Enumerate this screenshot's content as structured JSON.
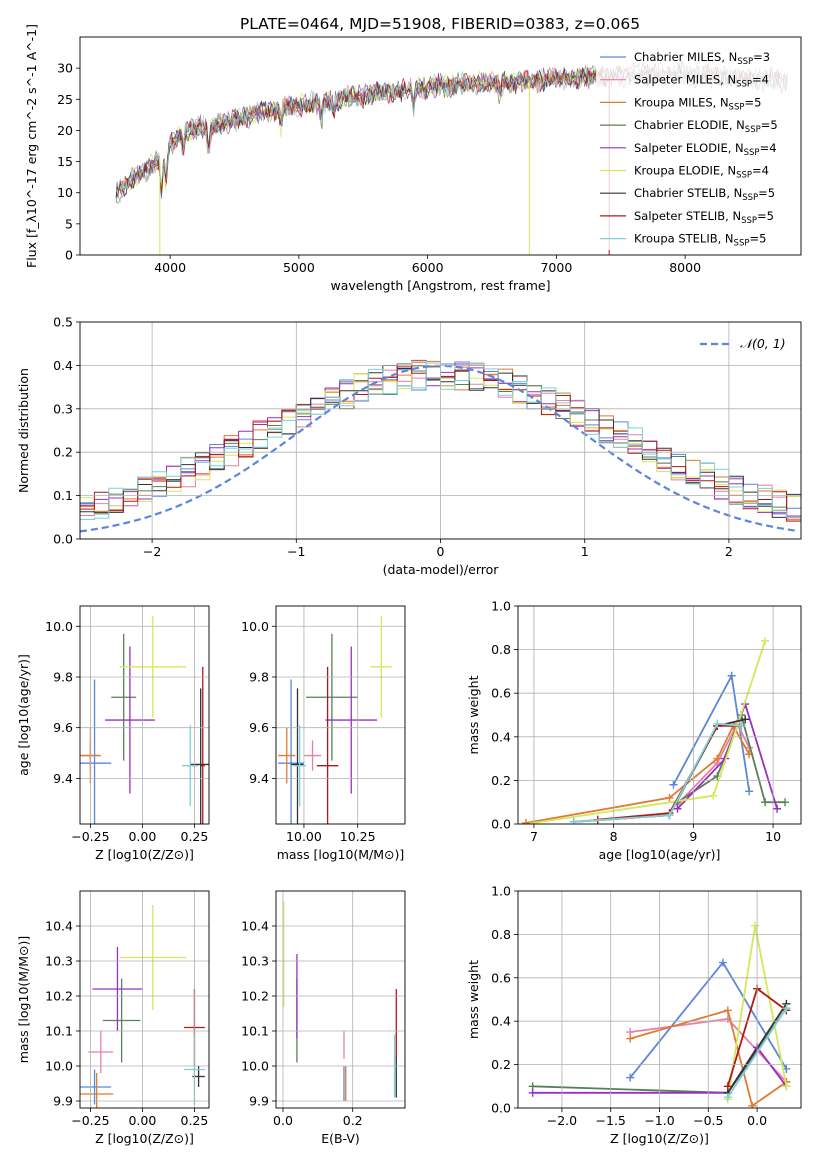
{
  "title": "PLATE=0464, MJD=51908, FIBERID=0383, z=0.065",
  "colors": {
    "chabrier_miles": "#5b86d9",
    "salpeter_miles": "#e87fa8",
    "kroupa_miles": "#e07a30",
    "chabrier_elodie": "#5a7f5a",
    "salpeter_elodie": "#9b30c0",
    "kroupa_elodie": "#d4e85a",
    "chabrier_stelib": "#333333",
    "salpeter_stelib": "#b01818",
    "kroupa_stelib": "#7fd0d8",
    "gauss": "#5b86d9",
    "grid": "#b0b0b0"
  },
  "chart_data": [
    {
      "id": "spectrum",
      "type": "line",
      "xlabel": "wavelength [Angstrom, rest frame]",
      "ylabel": "Flux [f_λ10^-17 erg cm^-2 s^-1 A^-1]",
      "xlim": [
        3300,
        8900
      ],
      "ylim": [
        0,
        35
      ],
      "xticks": [
        4000,
        5000,
        6000,
        7000,
        8000
      ],
      "yticks": [
        0,
        5,
        10,
        15,
        20,
        25,
        30
      ],
      "grid": false,
      "legend": "top-right",
      "legend_entries": [
        "Chabrier MILES, N_SSP=3",
        "Salpeter MILES, N_SSP=4",
        "Kroupa MILES, N_SSP=5",
        "Chabrier ELODIE, N_SSP=5",
        "Salpeter ELODIE, N_SSP=4",
        "Kroupa ELODIE, N_SSP=4",
        "Chabrier STELIB, N_SSP=5",
        "Salpeter STELIB, N_SSP=5",
        "Kroupa STELIB, N_SSP=5"
      ],
      "continuum": {
        "x": [
          3580,
          3700,
          3900,
          4100,
          4400,
          4700,
          5000,
          5300,
          5600,
          6000,
          6400,
          6800,
          7200,
          7600,
          8000,
          8400,
          8800
        ],
        "y": [
          10,
          12,
          15,
          20,
          21,
          23,
          24,
          25,
          26,
          27,
          27.5,
          28,
          28.5,
          29,
          29,
          28.5,
          28
        ]
      }
    },
    {
      "id": "residuals",
      "type": "line",
      "xlabel": "(data-model)/error",
      "ylabel": "Normed distribution",
      "xlim": [
        -2.5,
        2.5
      ],
      "ylim": [
        0,
        0.5
      ],
      "xticks": [
        -2,
        -1,
        0,
        1,
        2
      ],
      "yticks": [
        0.0,
        0.1,
        0.2,
        0.3,
        0.4,
        0.5
      ],
      "grid": true,
      "legend": "top-right",
      "gauss_label": "𝒩(0, 1)"
    },
    {
      "id": "age_vs_Z",
      "type": "scatter",
      "xlabel": "Z [log10(Z/Z⊙)]",
      "ylabel": "age  [log10(age/yr)]",
      "xlim": [
        -0.3,
        0.32
      ],
      "ylim": [
        9.22,
        10.08
      ],
      "xticks": [
        -0.25,
        0.0,
        0.25
      ],
      "yticks": [
        9.4,
        9.6,
        9.8,
        10.0
      ],
      "points": [
        {
          "s": "chabrier_miles",
          "x": -0.23,
          "xerr": 0.08,
          "y": 9.46,
          "yerr": 0.33
        },
        {
          "s": "salpeter_miles",
          "x": -0.25,
          "xerr": 0.04,
          "y": 9.49,
          "yerr": 0.06
        },
        {
          "s": "kroupa_miles",
          "x": -0.25,
          "xerr": 0.05,
          "y": 9.49,
          "yerr": 0.11
        },
        {
          "s": "chabrier_elodie",
          "x": -0.09,
          "xerr": 0.06,
          "y": 9.72,
          "yerr": 0.25
        },
        {
          "s": "salpeter_elodie",
          "x": -0.06,
          "xerr": 0.12,
          "y": 9.63,
          "yerr": 0.29
        },
        {
          "s": "kroupa_elodie",
          "x": 0.05,
          "xerr": 0.16,
          "y": 9.84,
          "yerr": 0.2
        },
        {
          "s": "chabrier_stelib",
          "x": 0.28,
          "xerr": 0.05,
          "y": 9.455,
          "yerr": 0.3
        },
        {
          "s": "salpeter_stelib",
          "x": 0.29,
          "xerr": 0.01,
          "y": 9.45,
          "yerr": 0.39
        },
        {
          "s": "kroupa_stelib",
          "x": 0.23,
          "xerr": 0.04,
          "y": 9.45,
          "yerr": 0.16
        }
      ]
    },
    {
      "id": "age_vs_mass",
      "type": "scatter",
      "xlabel": "mass [log10(M/M⊙)]",
      "ylabel": "",
      "xlim": [
        9.87,
        10.47
      ],
      "ylim": [
        9.22,
        10.08
      ],
      "xticks": [
        10.0,
        10.25
      ],
      "yticks": [
        9.4,
        9.6,
        9.8,
        10.0
      ],
      "points": [
        {
          "s": "chabrier_miles",
          "x": 9.94,
          "xerr": 0.06,
          "y": 9.46,
          "yerr": 0.33
        },
        {
          "s": "salpeter_miles",
          "x": 10.04,
          "xerr": 0.04,
          "y": 9.49,
          "yerr": 0.06
        },
        {
          "s": "kroupa_miles",
          "x": 9.92,
          "xerr": 0.04,
          "y": 9.49,
          "yerr": 0.11
        },
        {
          "s": "chabrier_elodie",
          "x": 10.13,
          "xerr": 0.12,
          "y": 9.72,
          "yerr": 0.25
        },
        {
          "s": "salpeter_elodie",
          "x": 10.22,
          "xerr": 0.12,
          "y": 9.63,
          "yerr": 0.29
        },
        {
          "s": "kroupa_elodie",
          "x": 10.36,
          "xerr": 0.05,
          "y": 9.84,
          "yerr": 0.2
        },
        {
          "s": "chabrier_stelib",
          "x": 9.97,
          "xerr": 0.03,
          "y": 9.455,
          "yerr": 0.3
        },
        {
          "s": "salpeter_stelib",
          "x": 10.11,
          "xerr": 0.05,
          "y": 9.45,
          "yerr": 0.39
        },
        {
          "s": "kroupa_stelib",
          "x": 9.98,
          "xerr": 0.03,
          "y": 9.45,
          "yerr": 0.16
        }
      ]
    },
    {
      "id": "weight_vs_age",
      "type": "line",
      "xlabel": "age  [log10(age/yr)]",
      "ylabel": "mass weight",
      "xlim": [
        6.8,
        10.35
      ],
      "ylim": [
        0,
        1
      ],
      "xticks": [
        7,
        8,
        9,
        10
      ],
      "yticks": [
        0.0,
        0.2,
        0.4,
        0.6,
        0.8,
        1.0
      ],
      "series": [
        {
          "s": "chabrier_miles",
          "x": [
            8.75,
            9.48,
            9.7
          ],
          "y": [
            0.18,
            0.68,
            0.15
          ]
        },
        {
          "s": "salpeter_miles",
          "x": [
            8.8,
            9.3,
            9.55,
            9.7
          ],
          "y": [
            0.09,
            0.28,
            0.46,
            0.35
          ]
        },
        {
          "s": "kroupa_miles",
          "x": [
            6.9,
            8.7,
            9.3,
            9.5,
            9.7
          ],
          "y": [
            0.005,
            0.12,
            0.3,
            0.45,
            0.32
          ]
        },
        {
          "s": "chabrier_elodie",
          "x": [
            8.8,
            9.3,
            9.6,
            9.9,
            10.15
          ],
          "y": [
            0.1,
            0.22,
            0.5,
            0.1,
            0.1
          ]
        },
        {
          "s": "salpeter_elodie",
          "x": [
            8.8,
            9.4,
            9.65,
            10.05
          ],
          "y": [
            0.07,
            0.3,
            0.55,
            0.07
          ]
        },
        {
          "s": "kroupa_elodie",
          "x": [
            7.0,
            9.25,
            9.55,
            9.9
          ],
          "y": [
            0.005,
            0.13,
            0.45,
            0.84
          ]
        },
        {
          "s": "chabrier_stelib",
          "x": [
            7.5,
            8.7,
            9.3,
            9.65
          ],
          "y": [
            0.01,
            0.04,
            0.45,
            0.48
          ]
        },
        {
          "s": "salpeter_stelib",
          "x": [
            7.8,
            8.7,
            9.3,
            9.6
          ],
          "y": [
            0.02,
            0.05,
            0.45,
            0.45
          ]
        },
        {
          "s": "kroupa_stelib",
          "x": [
            7.5,
            8.7,
            9.3,
            9.6
          ],
          "y": [
            0.01,
            0.04,
            0.46,
            0.45
          ]
        }
      ]
    },
    {
      "id": "mass_vs_Z",
      "type": "scatter",
      "xlabel": "Z [log10(Z/Z⊙)]",
      "ylabel": "mass [log10(M/M⊙)]",
      "xlim": [
        -0.3,
        0.32
      ],
      "ylim": [
        9.88,
        10.5
      ],
      "xticks": [
        -0.25,
        0.0,
        0.25
      ],
      "yticks": [
        9.9,
        10.0,
        10.1,
        10.2,
        10.3,
        10.4
      ],
      "points": [
        {
          "s": "chabrier_miles",
          "x": -0.23,
          "xerr": 0.08,
          "y": 9.94,
          "yerr": 0.05
        },
        {
          "s": "salpeter_miles",
          "x": -0.2,
          "xerr": 0.06,
          "y": 10.04,
          "yerr": 0.06
        },
        {
          "s": "kroupa_miles",
          "x": -0.22,
          "xerr": 0.08,
          "y": 9.92,
          "yerr": 0.06
        },
        {
          "s": "chabrier_elodie",
          "x": -0.1,
          "xerr": 0.09,
          "y": 10.13,
          "yerr": 0.12
        },
        {
          "s": "salpeter_elodie",
          "x": -0.12,
          "xerr": 0.12,
          "y": 10.22,
          "yerr": 0.12
        },
        {
          "s": "kroupa_elodie",
          "x": 0.05,
          "xerr": 0.16,
          "y": 10.31,
          "yerr": 0.15
        },
        {
          "s": "chabrier_stelib",
          "x": 0.27,
          "xerr": 0.03,
          "y": 9.97,
          "yerr": 0.03
        },
        {
          "s": "salpeter_stelib",
          "x": 0.25,
          "xerr": 0.05,
          "y": 10.11,
          "yerr": 0.11
        },
        {
          "s": "kroupa_stelib",
          "x": 0.25,
          "xerr": 0.05,
          "y": 9.99,
          "yerr": 0.1
        }
      ]
    },
    {
      "id": "mass_vs_EBV",
      "type": "scatter",
      "xlabel": "E(B-V)",
      "ylabel": "",
      "xlim": [
        -0.02,
        0.35
      ],
      "ylim": [
        9.88,
        10.5
      ],
      "xticks": [
        0.0,
        0.2
      ],
      "yticks": [
        9.9,
        10.0,
        10.1,
        10.2,
        10.3,
        10.4
      ],
      "points": [
        {
          "s": "chabrier_miles",
          "x": 0.175,
          "xerr": 0,
          "y": 9.95,
          "yerr": 0.05
        },
        {
          "s": "salpeter_miles",
          "x": 0.175,
          "xerr": 0,
          "y": 10.06,
          "yerr": 0.04
        },
        {
          "s": "kroupa_miles",
          "x": 0.18,
          "xerr": 0,
          "y": 9.95,
          "yerr": 0.05
        },
        {
          "s": "chabrier_elodie",
          "x": 0.04,
          "xerr": 0,
          "y": 10.13,
          "yerr": 0.12
        },
        {
          "s": "salpeter_elodie",
          "x": 0.04,
          "xerr": 0,
          "y": 10.2,
          "yerr": 0.12
        },
        {
          "s": "kroupa_elodie",
          "x": 0.002,
          "xerr": 0,
          "y": 10.32,
          "yerr": 0.15
        },
        {
          "s": "chabrier_stelib",
          "x": 0.325,
          "xerr": 0,
          "y": 9.97,
          "yerr": 0.06
        },
        {
          "s": "salpeter_stelib",
          "x": 0.325,
          "xerr": 0,
          "y": 10.12,
          "yerr": 0.1
        },
        {
          "s": "kroupa_stelib",
          "x": 0.32,
          "xerr": 0,
          "y": 10.0,
          "yerr": 0.09
        }
      ]
    },
    {
      "id": "weight_vs_Z",
      "type": "line",
      "xlabel": "Z [log10(Z/Z⊙)]",
      "ylabel": "mass weight",
      "xlim": [
        -2.45,
        0.45
      ],
      "ylim": [
        0,
        1
      ],
      "xticks": [
        -2.0,
        -1.5,
        -1.0,
        -0.5,
        0.0
      ],
      "yticks": [
        0.0,
        0.2,
        0.4,
        0.6,
        0.8,
        1.0
      ],
      "series": [
        {
          "s": "chabrier_miles",
          "x": [
            -1.3,
            -0.35,
            0.3
          ],
          "y": [
            0.14,
            0.67,
            0.18
          ]
        },
        {
          "s": "salpeter_miles",
          "x": [
            -1.3,
            -0.3,
            0.3
          ],
          "y": [
            0.35,
            0.41,
            0.12
          ]
        },
        {
          "s": "kroupa_miles",
          "x": [
            -1.3,
            -0.3,
            -0.05,
            0.3
          ],
          "y": [
            0.32,
            0.45,
            0.01,
            0.12
          ]
        },
        {
          "s": "chabrier_elodie",
          "x": [
            -2.3,
            -0.3,
            0.3
          ],
          "y": [
            0.1,
            0.07,
            0.46
          ]
        },
        {
          "s": "salpeter_elodie",
          "x": [
            -2.3,
            -0.3,
            0.0,
            0.3
          ],
          "y": [
            0.07,
            0.07,
            0.28,
            0.1
          ]
        },
        {
          "s": "kroupa_elodie",
          "x": [
            -0.3,
            -0.02,
            0.3
          ],
          "y": [
            0.04,
            0.84,
            0.1
          ]
        },
        {
          "s": "chabrier_stelib",
          "x": [
            -0.3,
            0.3
          ],
          "y": [
            0.07,
            0.48
          ]
        },
        {
          "s": "salpeter_stelib",
          "x": [
            -0.3,
            0.0,
            0.3
          ],
          "y": [
            0.1,
            0.55,
            0.45
          ]
        },
        {
          "s": "kroupa_stelib",
          "x": [
            -0.3,
            0.3
          ],
          "y": [
            0.05,
            0.46
          ]
        }
      ]
    }
  ]
}
